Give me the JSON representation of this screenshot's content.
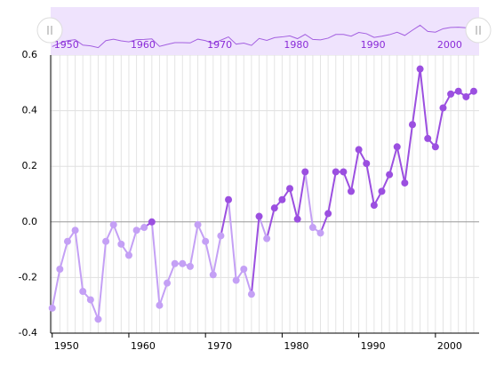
{
  "chart_data": {
    "type": "line",
    "x": [
      1950,
      1951,
      1952,
      1953,
      1954,
      1955,
      1956,
      1957,
      1958,
      1959,
      1960,
      1961,
      1962,
      1963,
      1964,
      1965,
      1966,
      1967,
      1968,
      1969,
      1970,
      1971,
      1972,
      1973,
      1974,
      1975,
      1976,
      1977,
      1978,
      1979,
      1980,
      1981,
      1982,
      1983,
      1984,
      1985,
      1986,
      1987,
      1988,
      1989,
      1990,
      1991,
      1992,
      1993,
      1994,
      1995,
      1996,
      1997,
      1998,
      1999,
      2000,
      2001,
      2002,
      2003,
      2004,
      2005
    ],
    "values": [
      -0.31,
      -0.17,
      -0.07,
      -0.03,
      -0.25,
      -0.28,
      -0.35,
      -0.07,
      -0.01,
      -0.08,
      -0.12,
      -0.03,
      -0.02,
      0.0,
      -0.3,
      -0.22,
      -0.15,
      -0.15,
      -0.16,
      -0.01,
      -0.07,
      -0.19,
      -0.05,
      0.08,
      -0.21,
      -0.17,
      -0.26,
      0.02,
      -0.06,
      0.05,
      0.08,
      0.12,
      0.01,
      0.18,
      -0.02,
      -0.04,
      0.03,
      0.18,
      0.18,
      0.11,
      0.26,
      0.21,
      0.06,
      0.11,
      0.17,
      0.27,
      0.14,
      0.35,
      0.55,
      0.3,
      0.27,
      0.41,
      0.46,
      0.47,
      0.45,
      0.47
    ],
    "color_positive": "#9b4fe0",
    "color_negative": "#c4a0f5",
    "xlim": [
      1949.8,
      2005.7
    ],
    "xticks": [
      1950,
      1960,
      1970,
      1980,
      1990,
      2000
    ],
    "ylim": [
      -0.4,
      0.6
    ],
    "yticks": [
      -0.4,
      -0.2,
      {
        "value": 0,
        "label": "0.0"
      },
      0.2,
      0.4,
      0.6
    ],
    "grid": true,
    "scrollbar": true
  }
}
